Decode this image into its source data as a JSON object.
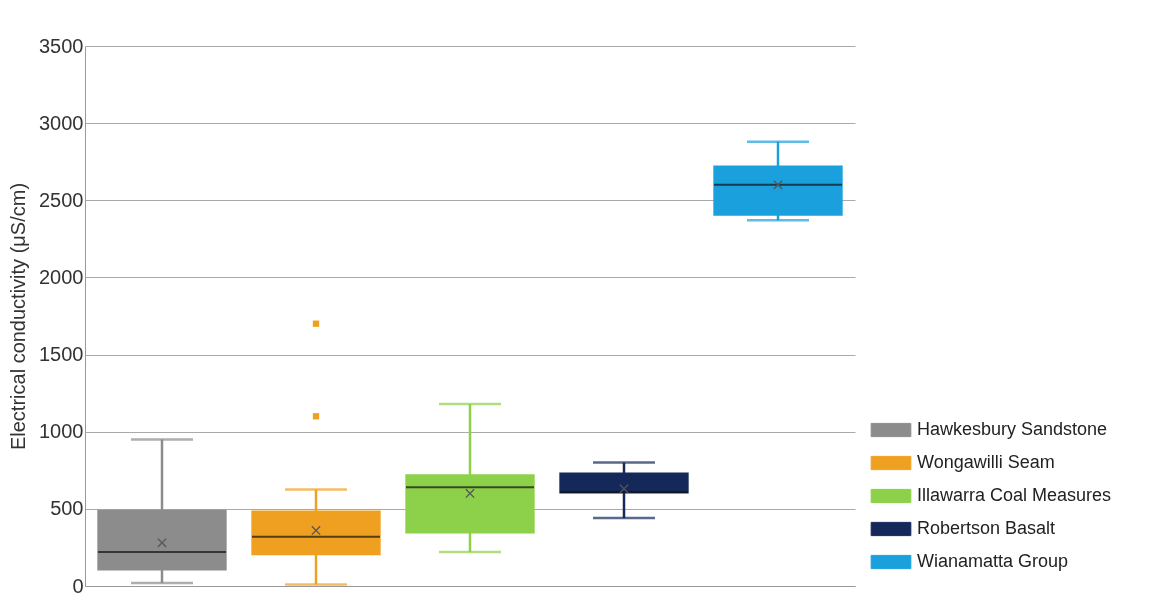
{
  "chart_data": {
    "type": "box",
    "ylabel": "Electrical conductivity (μS/cm)",
    "categories": [
      null
    ],
    "ylim": [
      0,
      3500
    ],
    "yticks": [
      0,
      500,
      1000,
      1500,
      2000,
      2500,
      3000,
      3500
    ],
    "grid": "y",
    "legend": "bottom right",
    "tick_labels": "y",
    "series": [
      {
        "name": "Hawkesbury Sandstone",
        "color": "#8c8c8c",
        "boxes": [
          {
            "low": 20,
            "q1": 100,
            "median": 220,
            "q3": 495,
            "high": 950,
            "mean": 280
          }
        ]
      },
      {
        "name": "Wongawilli Seam",
        "color": "#f0a020",
        "boxes": [
          {
            "low": 10,
            "q1": 200,
            "median": 320,
            "q3": 490,
            "high": 625,
            "mean": 360,
            "outliers": [
              1100,
              1700
            ]
          }
        ]
      },
      {
        "name": "Illawarra Coal Measures",
        "color": "#8dd04a",
        "boxes": [
          {
            "low": 220,
            "q1": 340,
            "median": 640,
            "q3": 725,
            "high": 1180,
            "mean": 600
          }
        ]
      },
      {
        "name": "Robertson Basalt",
        "color": "#14285a",
        "boxes": [
          {
            "low": 440,
            "q1": 600,
            "median": 610,
            "q3": 735,
            "high": 800,
            "mean": 630
          }
        ]
      },
      {
        "name": "Wianamatta Group",
        "color": "#1aa0dc",
        "boxes": [
          {
            "low": 2370,
            "q1": 2400,
            "median": 2600,
            "q3": 2725,
            "high": 2880,
            "mean": 2600
          }
        ]
      }
    ]
  }
}
